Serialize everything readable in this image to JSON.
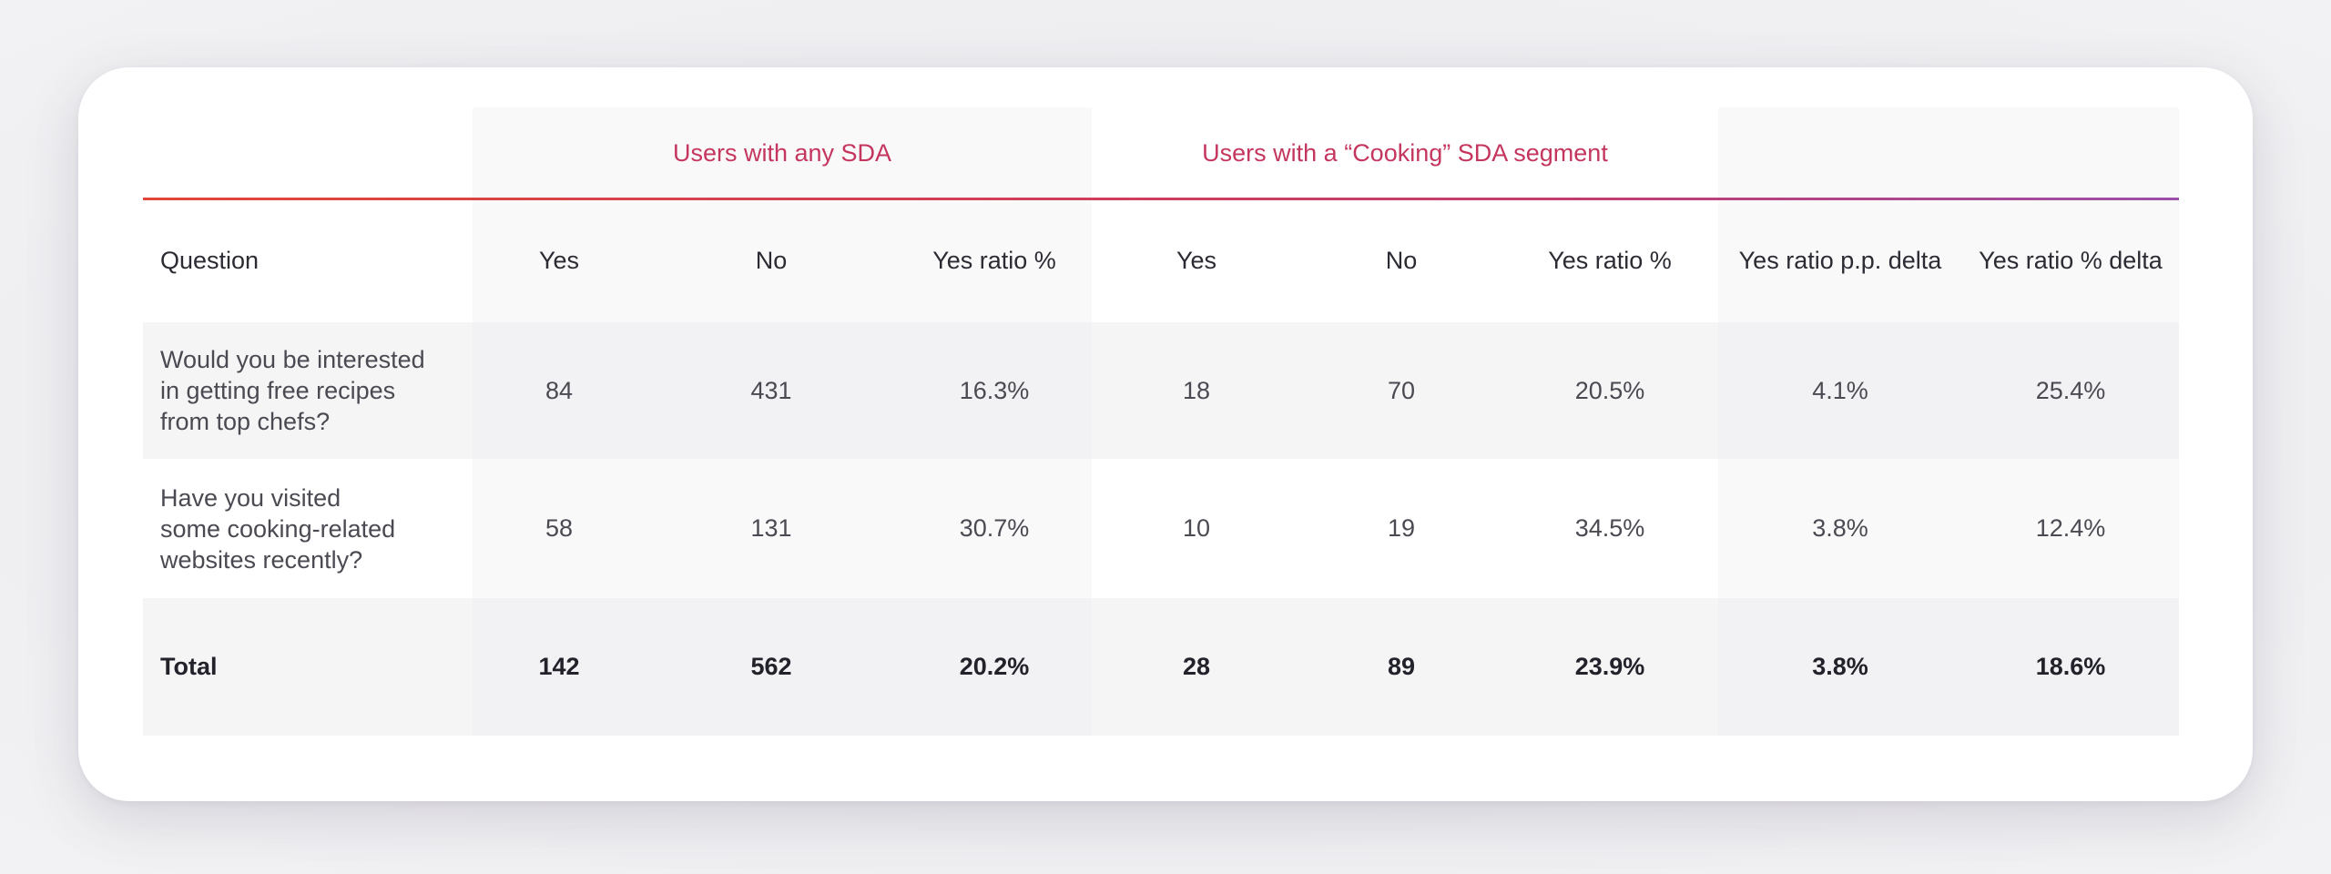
{
  "table": {
    "group_headers": {
      "any_sda": "Users with any SDA",
      "cooking_sda": "Users with a “Cooking” SDA segment"
    },
    "columns": [
      "Question",
      "Yes",
      "No",
      "Yes ratio %",
      "Yes",
      "No",
      "Yes ratio %",
      "Yes ratio p.p. delta",
      "Yes ratio % delta"
    ],
    "rows": [
      {
        "question": "Would you be interested\nin getting free recipes\nfrom top chefs?",
        "values": [
          "84",
          "431",
          "16.3%",
          "18",
          "70",
          "20.5%",
          "4.1%",
          "25.4%"
        ]
      },
      {
        "question": "Have you visited\nsome cooking-related\nwebsites recently?",
        "values": [
          "58",
          "131",
          "30.7%",
          "10",
          "19",
          "34.5%",
          "3.8%",
          "12.4%"
        ]
      }
    ],
    "total": {
      "label": "Total",
      "values": [
        "142",
        "562",
        "20.2%",
        "28",
        "89",
        "23.9%",
        "3.8%",
        "18.6%"
      ]
    },
    "colors": {
      "group_header_text": "#c5365e",
      "rule_start": "#e0473a",
      "rule_end": "#9b4fa8"
    }
  }
}
